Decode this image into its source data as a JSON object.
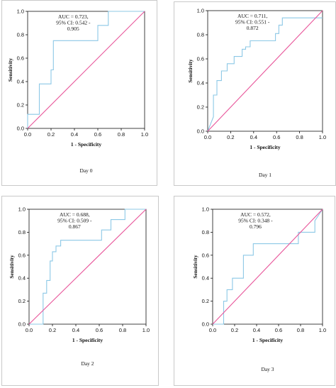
{
  "colors": {
    "roc": "#8cc8e6",
    "reference": "#e8559a",
    "axis": "#111111",
    "frame": "#c9c9c9"
  },
  "chart_data": [
    {
      "type": "line",
      "caption": "Day 0",
      "xlabel": "1 - Specificity",
      "ylabel": "Sensitivity",
      "xlim": [
        0,
        1
      ],
      "ylim": [
        0,
        1
      ],
      "x_ticks": [
        "0.0",
        "0.2",
        "0.4",
        "0.6",
        "0.8",
        "1.0"
      ],
      "y_ticks": [
        "0.0",
        "0.2",
        "0.4",
        "0.6",
        "0.8",
        "1.0"
      ],
      "annotation": [
        "AUC = 0.723,",
        "95% CI: 0.542 -",
        "0.905"
      ],
      "series": [
        {
          "kind": "roc",
          "x": [
            0,
            0,
            0.1,
            0.1,
            0.2,
            0.2,
            0.22,
            0.22,
            0.6,
            0.6,
            0.69,
            0.69,
            1.0
          ],
          "y": [
            0,
            0.12,
            0.12,
            0.38,
            0.38,
            0.5,
            0.5,
            0.75,
            0.75,
            0.88,
            0.88,
            1.0,
            1.0
          ]
        },
        {
          "kind": "reference",
          "x": [
            0,
            1
          ],
          "y": [
            0,
            1
          ]
        }
      ]
    },
    {
      "type": "line",
      "caption": "Day 1",
      "xlabel": "1 - Specificity",
      "ylabel": "Sensitivity",
      "xlim": [
        0,
        1
      ],
      "ylim": [
        0,
        1
      ],
      "x_ticks": [
        "0.0",
        "0.2",
        "0.4",
        "0.6",
        "0.8",
        "1.0"
      ],
      "y_ticks": [
        "0.0",
        "0.2",
        "0.4",
        "0.6",
        "0.8",
        "1.0"
      ],
      "annotation": [
        "AUC = 0.711,",
        "95% CI: 0.551 -",
        "0.872"
      ],
      "series": [
        {
          "kind": "roc",
          "x": [
            0,
            0.05,
            0.05,
            0.08,
            0.08,
            0.12,
            0.12,
            0.17,
            0.17,
            0.23,
            0.23,
            0.3,
            0.3,
            0.33,
            0.33,
            0.37,
            0.37,
            0.59,
            0.59,
            0.62,
            0.62,
            0.65,
            0.65,
            1.0
          ],
          "y": [
            0,
            0.12,
            0.3,
            0.3,
            0.42,
            0.42,
            0.5,
            0.5,
            0.56,
            0.56,
            0.62,
            0.62,
            0.68,
            0.68,
            0.7,
            0.7,
            0.75,
            0.75,
            0.81,
            0.81,
            0.88,
            0.88,
            0.94,
            0.94
          ]
        },
        {
          "kind": "reference",
          "x": [
            0,
            1
          ],
          "y": [
            0,
            1
          ]
        }
      ]
    },
    {
      "type": "line",
      "caption": "Day 2",
      "xlabel": "1 - Specificity",
      "ylabel": "Sensitivity",
      "xlim": [
        0,
        1
      ],
      "ylim": [
        0,
        1
      ],
      "x_ticks": [
        "0.0",
        "0.2",
        "0.4",
        "0.6",
        "0.8",
        "1.0"
      ],
      "y_ticks": [
        "0.0",
        "0.2",
        "0.4",
        "0.6",
        "0.8",
        "1.0"
      ],
      "annotation": [
        "AUC = 0.688,",
        "95% CI: 0.509 -",
        "0.867"
      ],
      "series": [
        {
          "kind": "roc",
          "x": [
            0,
            0.12,
            0.12,
            0.15,
            0.15,
            0.18,
            0.18,
            0.2,
            0.2,
            0.23,
            0.23,
            0.27,
            0.27,
            0.62,
            0.62,
            0.7,
            0.7,
            0.82,
            0.82,
            1.0
          ],
          "y": [
            0,
            0,
            0.27,
            0.27,
            0.38,
            0.38,
            0.55,
            0.55,
            0.63,
            0.63,
            0.68,
            0.68,
            0.73,
            0.73,
            0.82,
            0.82,
            0.91,
            0.91,
            1.0,
            1.0
          ]
        },
        {
          "kind": "reference",
          "x": [
            0,
            1
          ],
          "y": [
            0,
            1
          ]
        }
      ]
    },
    {
      "type": "line",
      "caption": "Day 3",
      "xlabel": "1 - Specificity",
      "ylabel": "Sensitivity",
      "xlim": [
        0,
        1
      ],
      "ylim": [
        0,
        1
      ],
      "x_ticks": [
        "0.0",
        "0.2",
        "0.4",
        "0.6",
        "0.8",
        "1.0"
      ],
      "y_ticks": [
        "0.0",
        "0.2",
        "0.4",
        "0.6",
        "0.8",
        "1.0"
      ],
      "annotation": [
        "AUC = 0.572,",
        "95% CI: 0.348 -",
        "0.796"
      ],
      "series": [
        {
          "kind": "roc",
          "x": [
            0,
            0.1,
            0.1,
            0.13,
            0.13,
            0.18,
            0.18,
            0.28,
            0.28,
            0.37,
            0.37,
            0.78,
            0.78,
            0.93,
            0.93,
            1.0
          ],
          "y": [
            0,
            0,
            0.2,
            0.2,
            0.3,
            0.3,
            0.4,
            0.4,
            0.6,
            0.6,
            0.7,
            0.7,
            0.8,
            0.8,
            0.9,
            1.0
          ]
        },
        {
          "kind": "reference",
          "x": [
            0,
            1
          ],
          "y": [
            0,
            1
          ]
        }
      ]
    }
  ]
}
